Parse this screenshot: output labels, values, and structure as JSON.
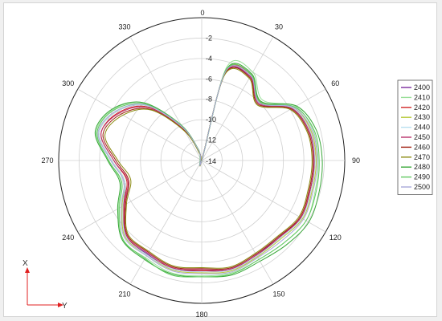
{
  "chart_data": {
    "type": "polar-line",
    "title": "",
    "radial_axis": {
      "min": -14,
      "max": 0,
      "ticks": [
        0,
        -2,
        -4,
        -6,
        -8,
        -10,
        -12,
        -14
      ],
      "tick_labels": [
        "0",
        "-2",
        "-4",
        "-6",
        "-8",
        "-10",
        "-12",
        "-14"
      ]
    },
    "angular_axis": {
      "direction": "clockwise",
      "zero_at": "top",
      "ticks": [
        0,
        30,
        60,
        90,
        120,
        150,
        180,
        210,
        240,
        270,
        300,
        330
      ],
      "tick_labels": [
        "0",
        "30",
        "60",
        "90",
        "120",
        "150",
        "180",
        "210",
        "240",
        "270",
        "300",
        "330"
      ]
    },
    "grid": true,
    "legend": "right",
    "angles": [
      0,
      15,
      30,
      45,
      60,
      75,
      90,
      105,
      120,
      135,
      150,
      165,
      180,
      195,
      210,
      225,
      240,
      255,
      270,
      285,
      300,
      315,
      330,
      345
    ],
    "series": [
      {
        "name": "2400",
        "color": "#7a2a9e",
        "values": [
          -14,
          -5.2,
          -4.5,
          -6.0,
          -3.8,
          -3.1,
          -3.0,
          -3.0,
          -2.8,
          -3.4,
          -3.3,
          -3.0,
          -3.2,
          -3.0,
          -3.4,
          -3.5,
          -5.2,
          -6.2,
          -5.2,
          -3.6,
          -4.4,
          -6.4,
          -10.2,
          -13.2
        ]
      },
      {
        "name": "2410",
        "color": "#9adf9a",
        "values": [
          -14,
          -4.5,
          -4.0,
          -5.6,
          -3.4,
          -2.7,
          -2.6,
          -2.5,
          -2.2,
          -2.6,
          -2.8,
          -2.6,
          -2.7,
          -2.6,
          -3.0,
          -3.0,
          -4.6,
          -5.8,
          -4.9,
          -3.3,
          -4.0,
          -6.0,
          -10.0,
          -13.0
        ]
      },
      {
        "name": "2420",
        "color": "#d22525",
        "values": [
          -14,
          -5.0,
          -4.3,
          -5.9,
          -3.7,
          -3.0,
          -2.9,
          -3.0,
          -2.8,
          -3.3,
          -3.2,
          -2.9,
          -3.2,
          -3.1,
          -3.3,
          -3.6,
          -5.2,
          -6.4,
          -5.4,
          -3.8,
          -4.6,
          -6.6,
          -10.4,
          -13.2
        ]
      },
      {
        "name": "2430",
        "color": "#b6c838",
        "values": [
          -14,
          -4.9,
          -4.3,
          -5.9,
          -3.6,
          -2.9,
          -2.8,
          -2.8,
          -2.6,
          -3.1,
          -3.1,
          -2.8,
          -3.0,
          -2.9,
          -3.3,
          -3.4,
          -5.0,
          -6.2,
          -5.2,
          -3.6,
          -4.4,
          -6.4,
          -10.3,
          -13.2
        ]
      },
      {
        "name": "2440",
        "color": "#b8e0f0",
        "values": [
          -14,
          -5.1,
          -4.4,
          -6.0,
          -3.7,
          -3.0,
          -2.9,
          -2.9,
          -2.7,
          -3.2,
          -3.2,
          -2.9,
          -3.1,
          -3.0,
          -3.3,
          -3.5,
          -5.1,
          -6.2,
          -5.2,
          -3.6,
          -4.4,
          -6.4,
          -10.3,
          -13.2
        ]
      },
      {
        "name": "2450",
        "color": "#b8326c",
        "values": [
          -14,
          -5.1,
          -4.5,
          -6.1,
          -3.8,
          -3.1,
          -3.0,
          -3.0,
          -2.8,
          -3.3,
          -3.3,
          -3.0,
          -3.3,
          -3.1,
          -3.5,
          -3.6,
          -5.3,
          -6.5,
          -5.4,
          -3.8,
          -4.7,
          -6.7,
          -10.5,
          -13.3
        ]
      },
      {
        "name": "2460",
        "color": "#a02010",
        "values": [
          -14,
          -5.2,
          -4.6,
          -6.2,
          -3.9,
          -3.2,
          -3.1,
          -3.1,
          -2.9,
          -3.4,
          -3.4,
          -3.1,
          -3.4,
          -3.2,
          -3.6,
          -3.7,
          -5.4,
          -6.6,
          -5.6,
          -4.0,
          -4.9,
          -6.9,
          -10.6,
          -13.3
        ]
      },
      {
        "name": "2470",
        "color": "#8a8a10",
        "values": [
          -14,
          -5.3,
          -4.7,
          -6.3,
          -4.0,
          -3.3,
          -3.2,
          -3.2,
          -3.0,
          -3.5,
          -3.5,
          -3.2,
          -3.5,
          -3.3,
          -3.7,
          -3.8,
          -5.5,
          -6.8,
          -5.8,
          -4.2,
          -5.1,
          -7.0,
          -10.7,
          -13.4
        ]
      },
      {
        "name": "2480",
        "color": "#3aa83a",
        "values": [
          -14,
          -4.8,
          -4.2,
          -5.8,
          -3.3,
          -2.4,
          -2.2,
          -2.1,
          -1.9,
          -2.3,
          -2.6,
          -2.4,
          -2.6,
          -2.5,
          -2.8,
          -3.0,
          -4.5,
          -5.7,
          -4.8,
          -3.2,
          -3.9,
          -6.0,
          -10.0,
          -13.0
        ]
      },
      {
        "name": "2490",
        "color": "#60c860",
        "values": [
          -14,
          -4.9,
          -4.3,
          -5.9,
          -3.5,
          -2.6,
          -2.5,
          -2.4,
          -2.2,
          -2.6,
          -2.8,
          -2.5,
          -2.6,
          -2.4,
          -2.9,
          -3.1,
          -4.7,
          -5.9,
          -4.9,
          -3.4,
          -4.1,
          -6.2,
          -10.1,
          -13.1
        ]
      },
      {
        "name": "2500",
        "color": "#a8a8d8",
        "values": [
          -14,
          -5.0,
          -4.4,
          -6.0,
          -3.6,
          -2.8,
          -2.7,
          -2.7,
          -2.5,
          -2.9,
          -3.0,
          -2.7,
          -2.9,
          -2.8,
          -3.2,
          -3.3,
          -4.9,
          -6.1,
          -5.1,
          -3.5,
          -4.3,
          -6.3,
          -10.2,
          -13.1
        ]
      }
    ]
  },
  "corner_axes": {
    "x_label": "X",
    "y_label": "Y",
    "axis_color": "#e02020"
  }
}
